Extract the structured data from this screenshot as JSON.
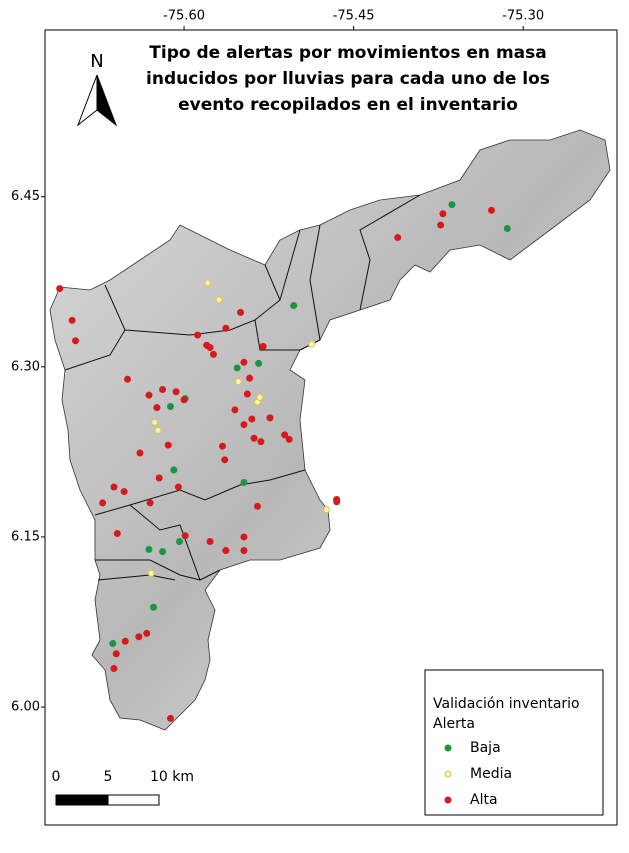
{
  "chart_data": {
    "type": "map",
    "title": [
      "Tipo de alertas por movimientos en masa",
      "inducidos por lluvias para cada uno de los",
      "evento recopilados en el inventario"
    ],
    "xlim": [
      -75.723,
      -75.217
    ],
    "ylim": [
      5.896,
      6.597
    ],
    "xticks": [
      {
        "value": -75.6,
        "label": "-75.60"
      },
      -75.45,
      {
        "value": -75.3,
        "label": "-75.30"
      }
    ],
    "yticks": [
      6.45,
      {
        "value": 6.3,
        "label": "6.30"
      },
      6.15,
      {
        "value": 6.0,
        "label": "6.00"
      }
    ],
    "grid": false,
    "legend": {
      "title": "Validación inventario",
      "subtitle": "Alerta",
      "position": "lower right"
    },
    "north_arrow": "N",
    "scale_bar": [
      "0",
      "5",
      "10 km"
    ],
    "series": [
      {
        "name": "Baja",
        "color": "#1a9641",
        "edgecolor": "#1a9641",
        "x": [
          -75.363,
          -75.314,
          -75.503,
          -75.534,
          -75.553,
          -75.612,
          -75.599,
          -75.547,
          -75.609,
          -75.631,
          -75.604,
          -75.619,
          -75.627,
          -75.663
        ],
        "y": [
          6.443,
          6.422,
          6.354,
          6.303,
          6.299,
          6.265,
          6.272,
          6.198,
          6.209,
          6.139,
          6.146,
          6.137,
          6.088,
          6.056
        ]
      },
      {
        "name": "Media",
        "color": "#fff5a8",
        "edgecolor": "#e0c04a",
        "x": [
          -75.579,
          -75.569,
          -75.487,
          -75.552,
          -75.535,
          -75.533,
          -75.626,
          -75.623,
          -75.474,
          -75.629
        ],
        "y": [
          6.374,
          6.359,
          6.32,
          6.287,
          6.269,
          6.273,
          6.251,
          6.244,
          6.174,
          6.118
        ]
      },
      {
        "name": "Alta",
        "color": "#d7191c",
        "edgecolor": "#d7191c",
        "x": [
          -75.71,
          -75.699,
          -75.696,
          -75.411,
          -75.371,
          -75.373,
          -75.328,
          -75.55,
          -75.588,
          -75.58,
          -75.577,
          -75.574,
          -75.53,
          -75.563,
          -75.547,
          -75.542,
          -75.544,
          -75.555,
          -75.54,
          -75.547,
          -75.532,
          -75.538,
          -75.524,
          -75.511,
          -75.507,
          -75.566,
          -75.564,
          -75.65,
          -75.631,
          -75.619,
          -75.607,
          -75.6,
          -75.624,
          -75.614,
          -75.639,
          -75.622,
          -75.605,
          -75.63,
          -75.672,
          -75.662,
          -75.653,
          -75.659,
          -75.599,
          -75.577,
          -75.563,
          -75.547,
          -75.547,
          -75.535,
          -75.465,
          -75.465,
          -75.662,
          -75.652,
          -75.64,
          -75.633,
          -75.612,
          -75.66
        ],
        "y": [
          6.369,
          6.341,
          6.323,
          6.414,
          6.435,
          6.425,
          6.438,
          6.348,
          6.328,
          6.319,
          6.317,
          6.311,
          6.318,
          6.334,
          6.304,
          6.29,
          6.276,
          6.262,
          6.254,
          6.249,
          6.234,
          6.237,
          6.255,
          6.24,
          6.236,
          6.23,
          6.218,
          6.289,
          6.275,
          6.28,
          6.278,
          6.271,
          6.264,
          6.231,
          6.224,
          6.202,
          6.194,
          6.18,
          6.18,
          6.194,
          6.19,
          6.153,
          6.151,
          6.146,
          6.138,
          6.15,
          6.138,
          6.177,
          6.183,
          6.181,
          6.034,
          6.058,
          6.062,
          6.065,
          5.99,
          6.047
        ]
      }
    ]
  }
}
